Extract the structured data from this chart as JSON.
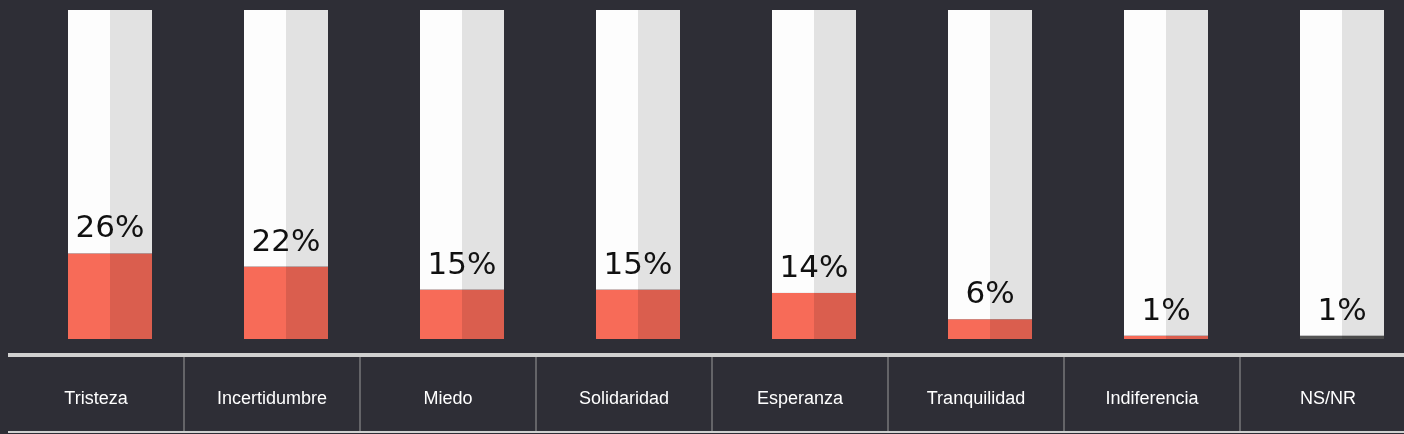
{
  "chart_data": {
    "type": "bar",
    "stacked": true,
    "categories": [
      "Tristeza",
      "Incertidumbre",
      "Miedo",
      "Solidaridad",
      "Esperanza",
      "Tranquilidad",
      "Indiferencia",
      "NS/NR"
    ],
    "series": [
      {
        "values": [
          26,
          22,
          15,
          15,
          14,
          6,
          1,
          1
        ],
        "colors": [
          "#f76b58",
          "#f76b58",
          "#f76b58",
          "#f76b58",
          "#f76b58",
          "#f76b58",
          "#f76b58",
          "#555555"
        ],
        "value_labels": [
          "26%",
          "22%",
          "15%",
          "15%",
          "14%",
          "6%",
          "1%",
          "1%"
        ]
      },
      {
        "values": [
          74,
          78,
          85,
          85,
          86,
          94,
          99,
          99
        ],
        "color": "#fdfdfd"
      }
    ],
    "ylim": [
      0,
      100
    ]
  }
}
